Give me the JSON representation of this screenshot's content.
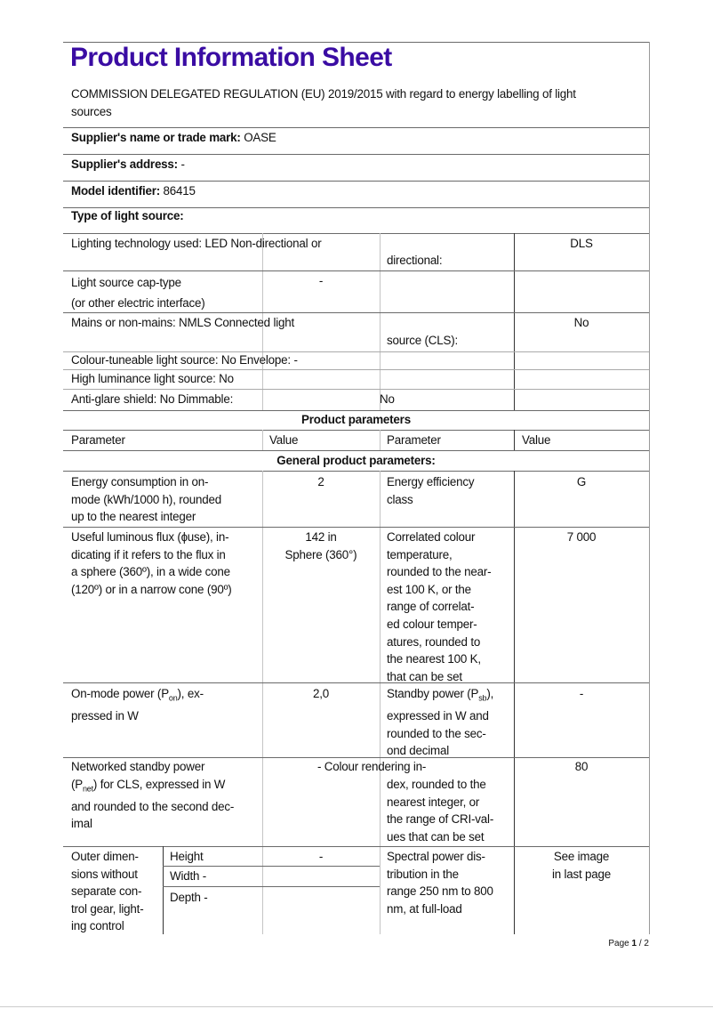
{
  "title": "Product Information Sheet",
  "subtitle": "COMMISSION DELEGATED REGULATION (EU) 2019/2015 with regard to energy labelling of light\nsources",
  "supplier": {
    "name_label": "Supplier's name or trade mark:",
    "name_value": "OASE",
    "address_label": "Supplier's address:",
    "address_value": "-",
    "model_label": "Model identifier:",
    "model_value": "86415",
    "type_label": "Type of light source:"
  },
  "type_rows": {
    "r1_left": "Lighting technology used: LED Non-directional  or",
    "r1_mid": "directional:",
    "r1_val": "DLS",
    "r2_left": "Light source cap-type\n(or other electric interface)",
    "r2_val": "-",
    "r3_left": "Mains or non-mains: NMLS Connected  light",
    "r3_mid": "source (CLS):",
    "r3_val": "No",
    "r4_left": "Colour-tuneable light source: No Envelope: -",
    "r5_left": "High luminance light source: No",
    "r6_left": "Anti-glare shield: No Dimmable:",
    "r6_val": "No"
  },
  "product_parameters_heading": "Product parameters",
  "columns": [
    "Parameter",
    "Value",
    "Parameter",
    "Value"
  ],
  "general_heading": "General product parameters:",
  "params": {
    "p1": {
      "param": "Energy consumption in on-\nmode (kWh/1000 h), rounded\nup to the nearest integer",
      "value": "2",
      "param2": "Energy efficiency\nclass",
      "value2": "G"
    },
    "p2": {
      "param": "Useful luminous flux (ɸuse), in-\ndicating if it refers to the flux in\na sphere (360º), in a wide cone\n(120º) or in a narrow cone (90º)",
      "value": "142 in\nSphere (360°)",
      "param2": "Correlated colour\ntemperature,\nrounded to the near-\nest 100 K, or the\nrange of correlat-\ned colour temper-\natures, rounded to\nthe nearest 100 K,\nthat can be set",
      "value2": "7 000"
    },
    "p3": {
      "param_a": "On-mode power (P",
      "param_sub": "on",
      "param_b": "), ex-\npressed in W",
      "value": "2,0",
      "param2_a": "Standby power (P",
      "param2_sub": "sb",
      "param2_b": "),\nexpressed in W and\nrounded to the sec-\nond decimal",
      "value2": "-"
    },
    "p4": {
      "param_a": "Networked standby power\n(P",
      "param_sub": "net",
      "param_b": ") for CLS, expressed in W\nand rounded to the second dec-\nimal",
      "value": "- Colour rendering in-",
      "param2": "dex, rounded to the\nnearest integer, or\nthe range of CRI-val-\nues that can be set",
      "value2": "80"
    },
    "p5": {
      "param": "Outer dimen-\nsions without\nseparate con-\ntrol gear, light-\ning control",
      "height": "Height",
      "height_value": "-",
      "width": "Width -",
      "depth": "Depth -",
      "param2": "Spectral power dis-\ntribution in the\nrange 250 nm to 800\nnm, at full-load",
      "value2": "See image\nin last page"
    }
  },
  "page_label": "Page",
  "page_current": "1",
  "page_total": "/ 2",
  "colors": {
    "title": "#3a0ca3"
  }
}
